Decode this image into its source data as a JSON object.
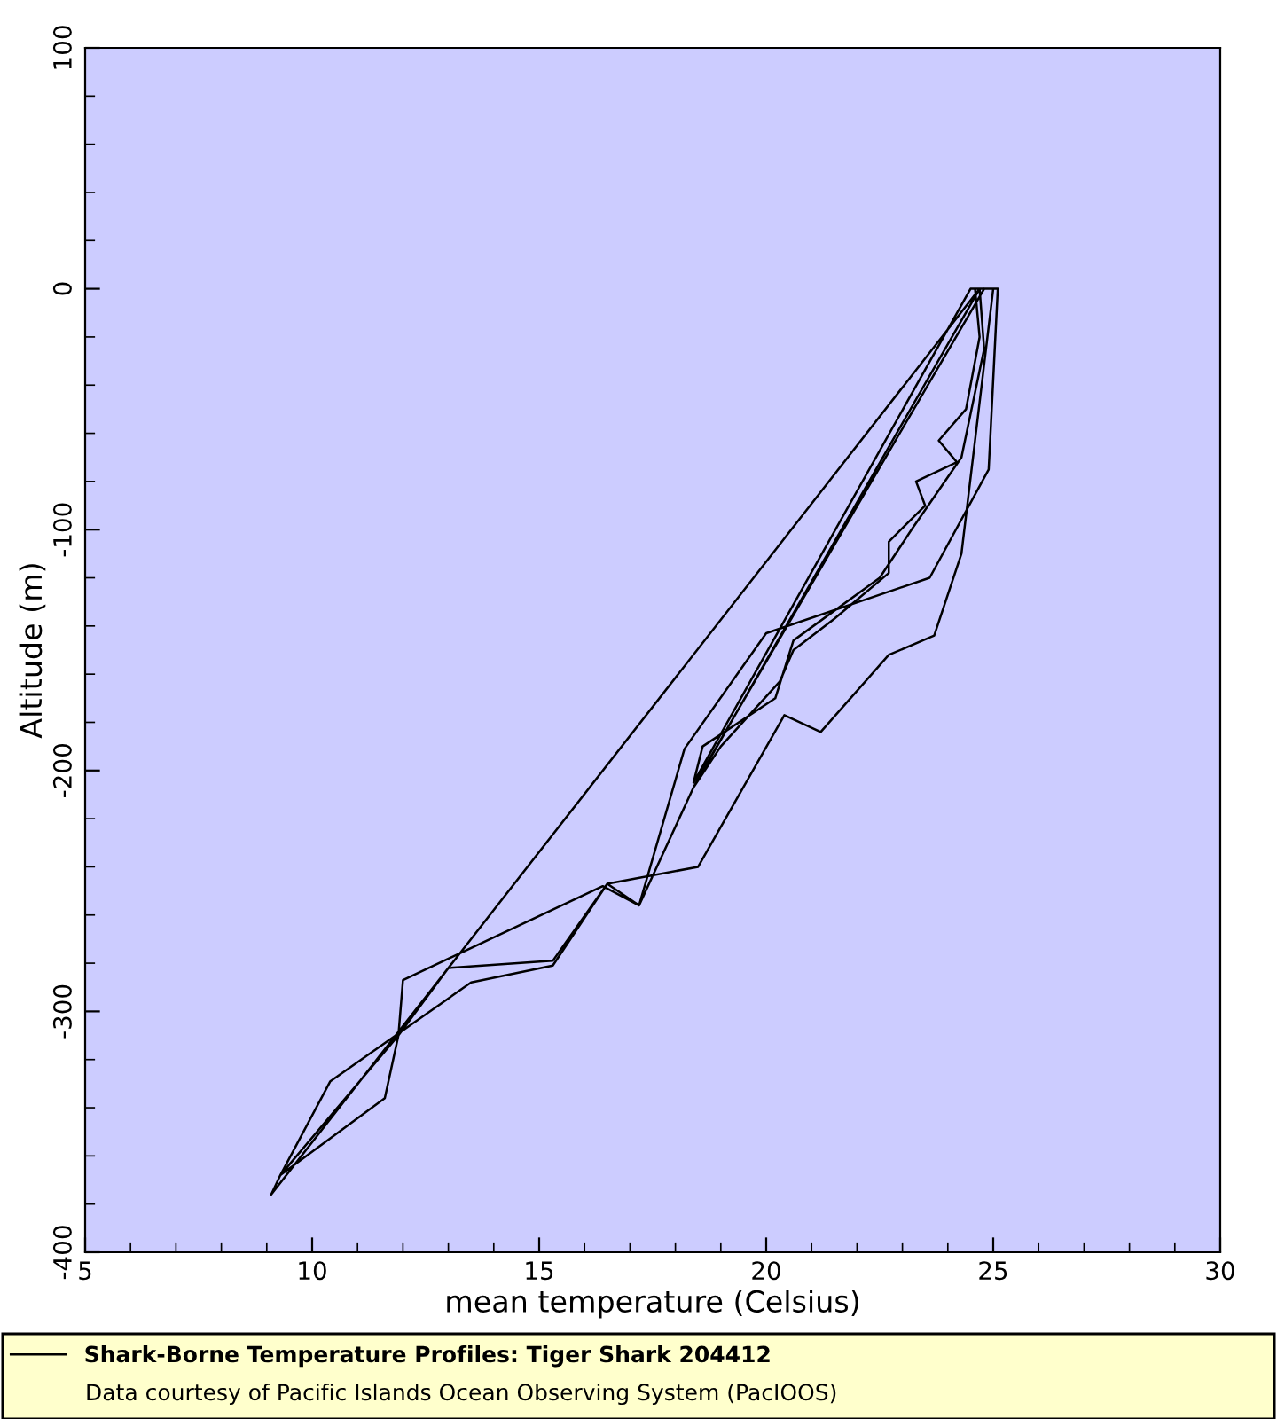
{
  "chart_data": {
    "type": "line",
    "xlabel": "mean temperature (Celsius)",
    "ylabel": "Altitude (m)",
    "series": [
      {
        "name": "Shark-Borne Temperature Profiles: Tiger Shark 204412",
        "color": "#000000",
        "x": [
          24.6,
          24.7,
          24.4,
          23.8,
          24.2,
          23.3,
          23.5,
          22.7,
          22.7,
          21.5,
          20.6,
          20.3,
          19.0,
          18.4,
          24.7,
          24.8,
          24.3,
          23.2,
          22.5,
          20.6,
          20.2,
          18.6,
          18.4,
          24.5,
          25.1,
          24.9,
          23.6,
          20.0,
          18.2,
          17.2,
          16.4,
          12.0,
          11.9,
          9.3,
          9.1,
          24.7,
          25.0,
          24.3,
          23.7,
          22.7,
          21.2,
          20.4,
          18.5,
          16.5,
          15.3,
          13.5,
          10.4,
          9.3,
          11.6,
          11.9,
          13.0,
          15.3,
          16.5,
          17.2,
          18.4,
          18.6,
          24.8
        ],
        "values": [
          0,
          -20,
          -50,
          -63,
          -72,
          -80,
          -90,
          -105,
          -118,
          -137,
          -150,
          -163,
          -190,
          -207,
          0,
          -25,
          -70,
          -100,
          -120,
          -146,
          -170,
          -190,
          -205,
          0,
          0,
          -75,
          -120,
          -143,
          -191,
          -256,
          -248,
          -287,
          -310,
          -368,
          -376,
          0,
          0,
          -110,
          -144,
          -152,
          -184,
          -177,
          -240,
          -247,
          -281,
          -288,
          -329,
          -368,
          -336,
          -310,
          -282,
          -279,
          -247,
          -256,
          -207,
          -200,
          0
        ]
      }
    ],
    "xlim": [
      5,
      30
    ],
    "xticks": [
      5,
      10,
      15,
      20,
      25,
      30
    ],
    "ylim": [
      -400,
      100
    ],
    "yticks": [
      -400,
      -300,
      -200,
      -100,
      0,
      100
    ],
    "grid": false,
    "legend": "bottom",
    "marker": "none",
    "line_style": "solid",
    "annotations": [
      "Data courtesy of Pacific Islands Ocean Observing System (PacIOOS)"
    ]
  }
}
